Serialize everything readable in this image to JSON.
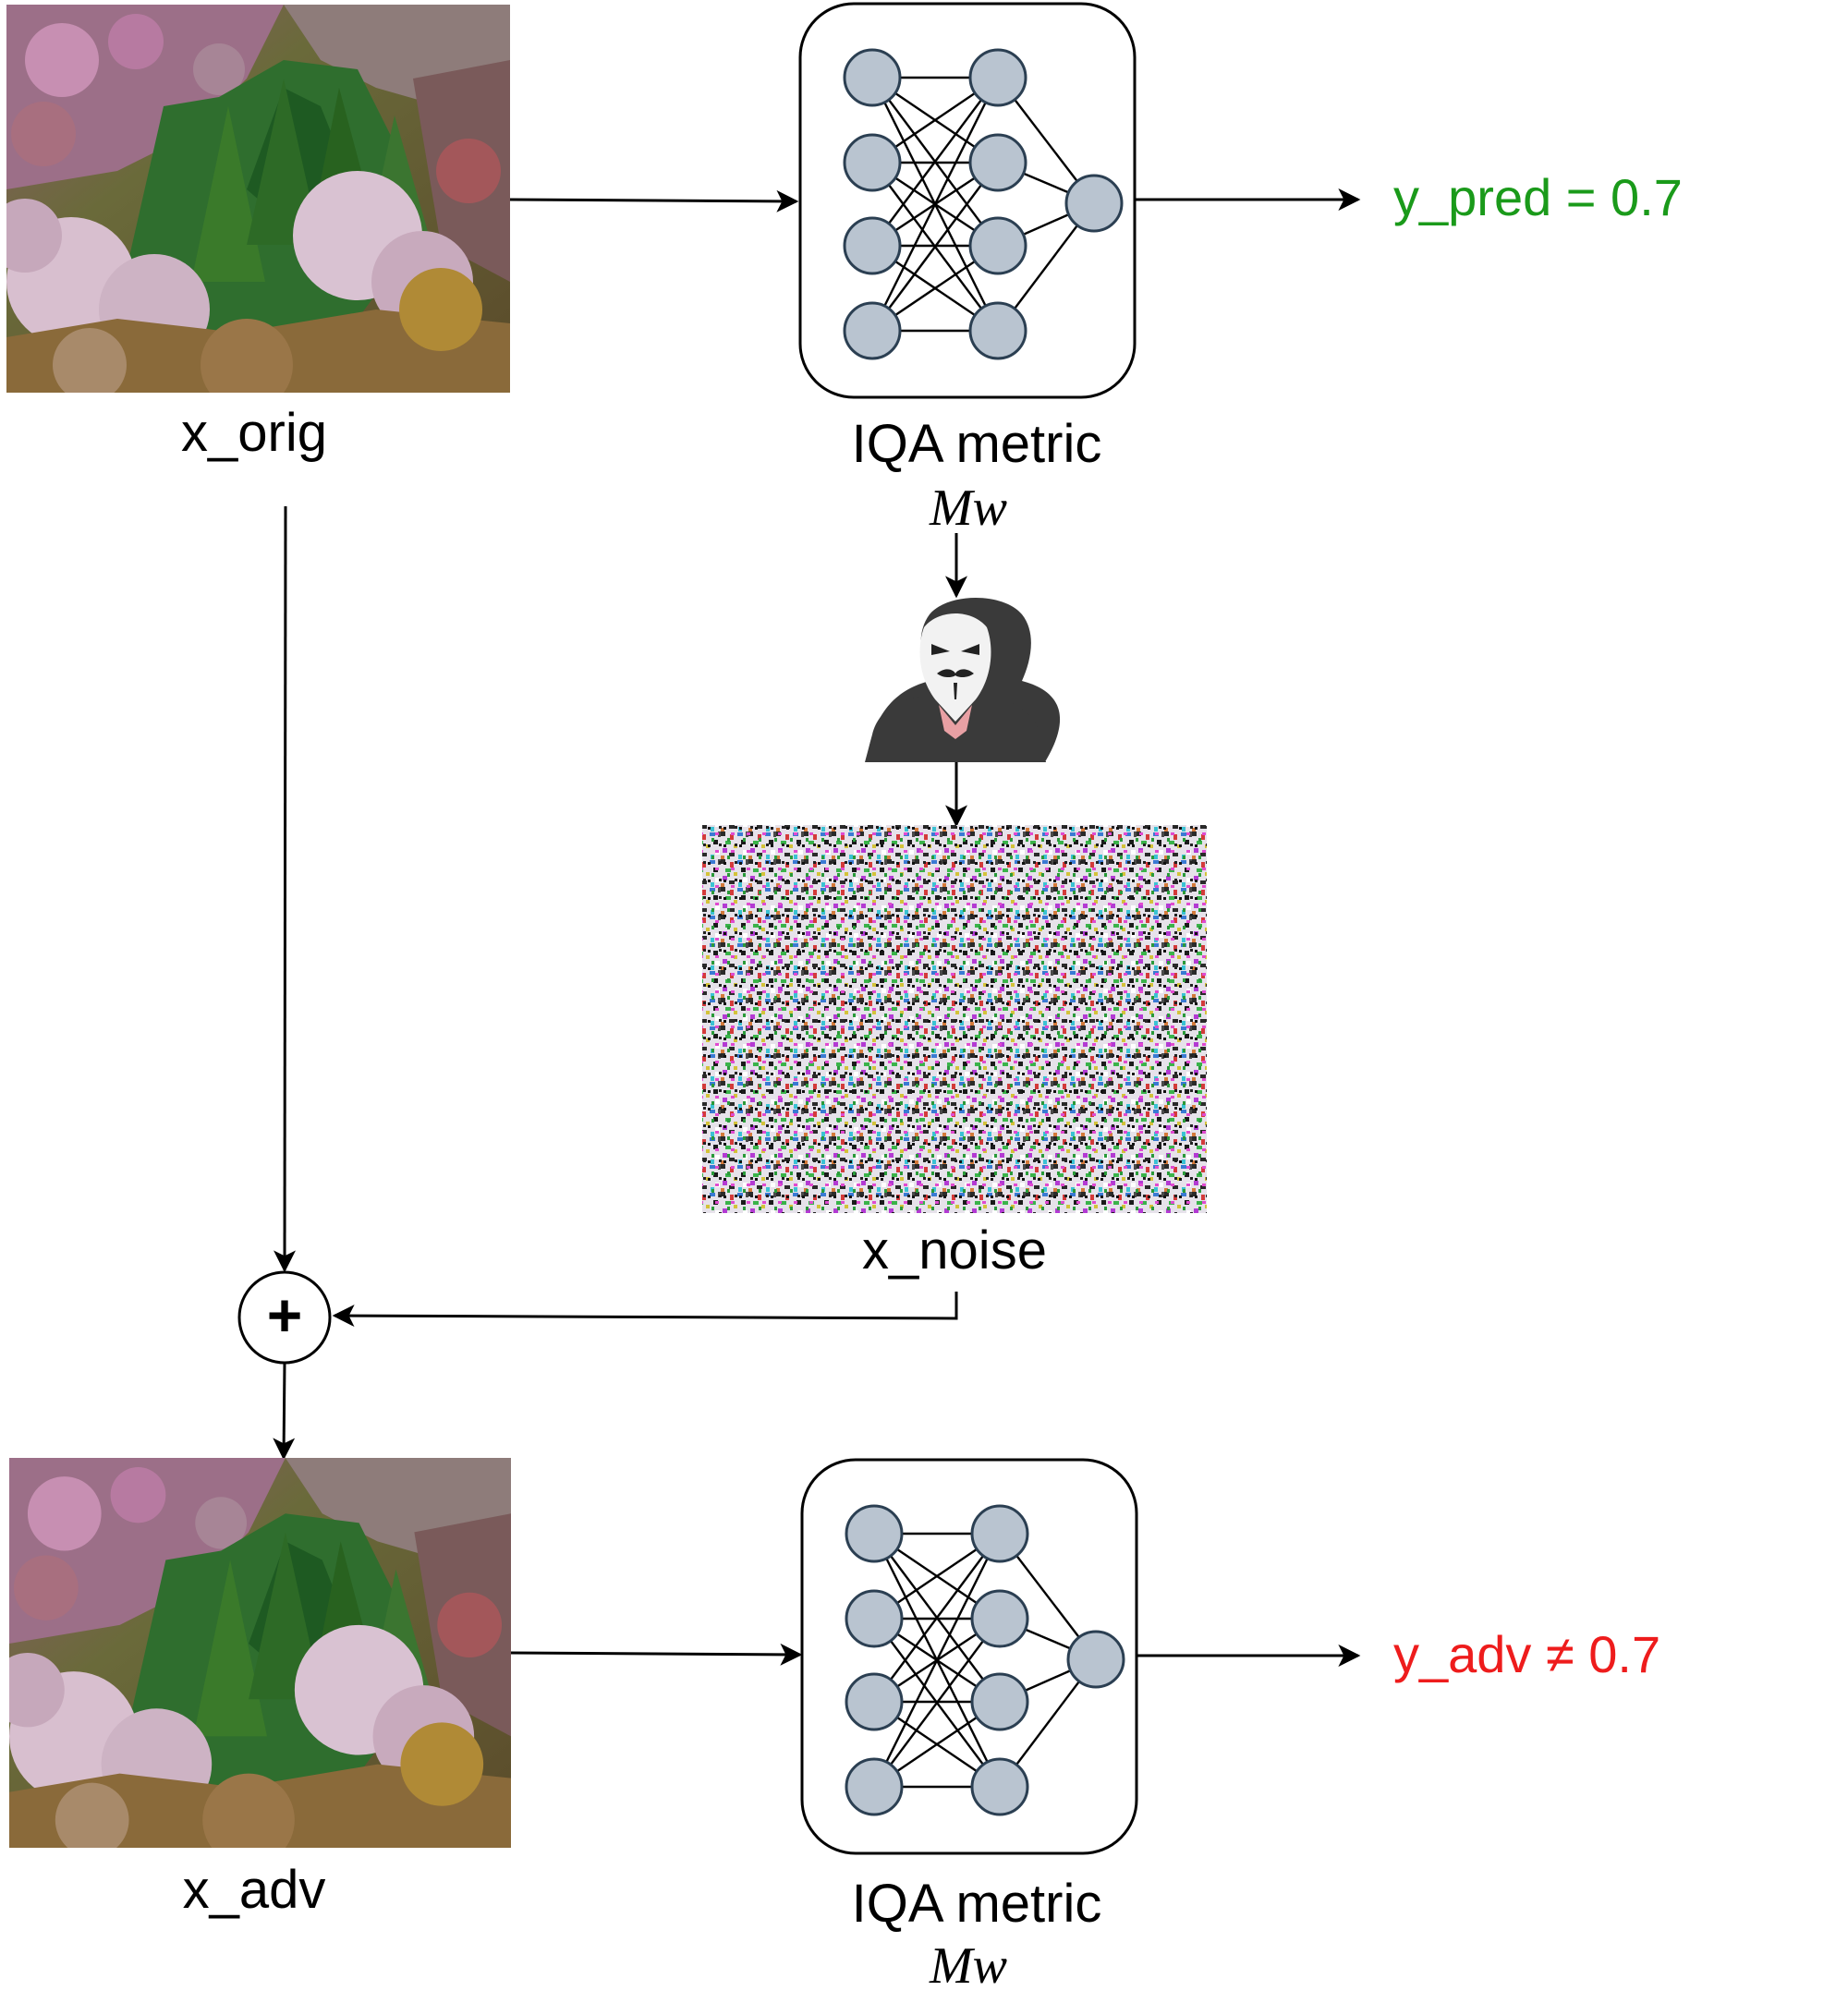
{
  "labels": {
    "x_orig": "x_orig",
    "x_noise": "x_noise",
    "x_adv": "x_adv",
    "iqa_top": "IQA metric",
    "iqa_top_sub": "Mw",
    "iqa_bottom": "IQA metric",
    "iqa_bottom_sub": "Mw",
    "y_pred": "y_pred = 0.7",
    "y_adv": "y_adv ≠ 0.7",
    "plus": "+"
  },
  "colors": {
    "y_pred": "#1a9a1a",
    "y_adv": "#ee1c1c",
    "node_fill": "#b9c4d0",
    "node_stroke": "#2b3f52"
  },
  "icons": {
    "original_image": "landscape-photo-icon",
    "noise_image": "noise-pattern-icon",
    "adversarial_image": "landscape-photo-icon",
    "attacker": "hooded-attacker-icon",
    "adder": "plus-icon"
  }
}
